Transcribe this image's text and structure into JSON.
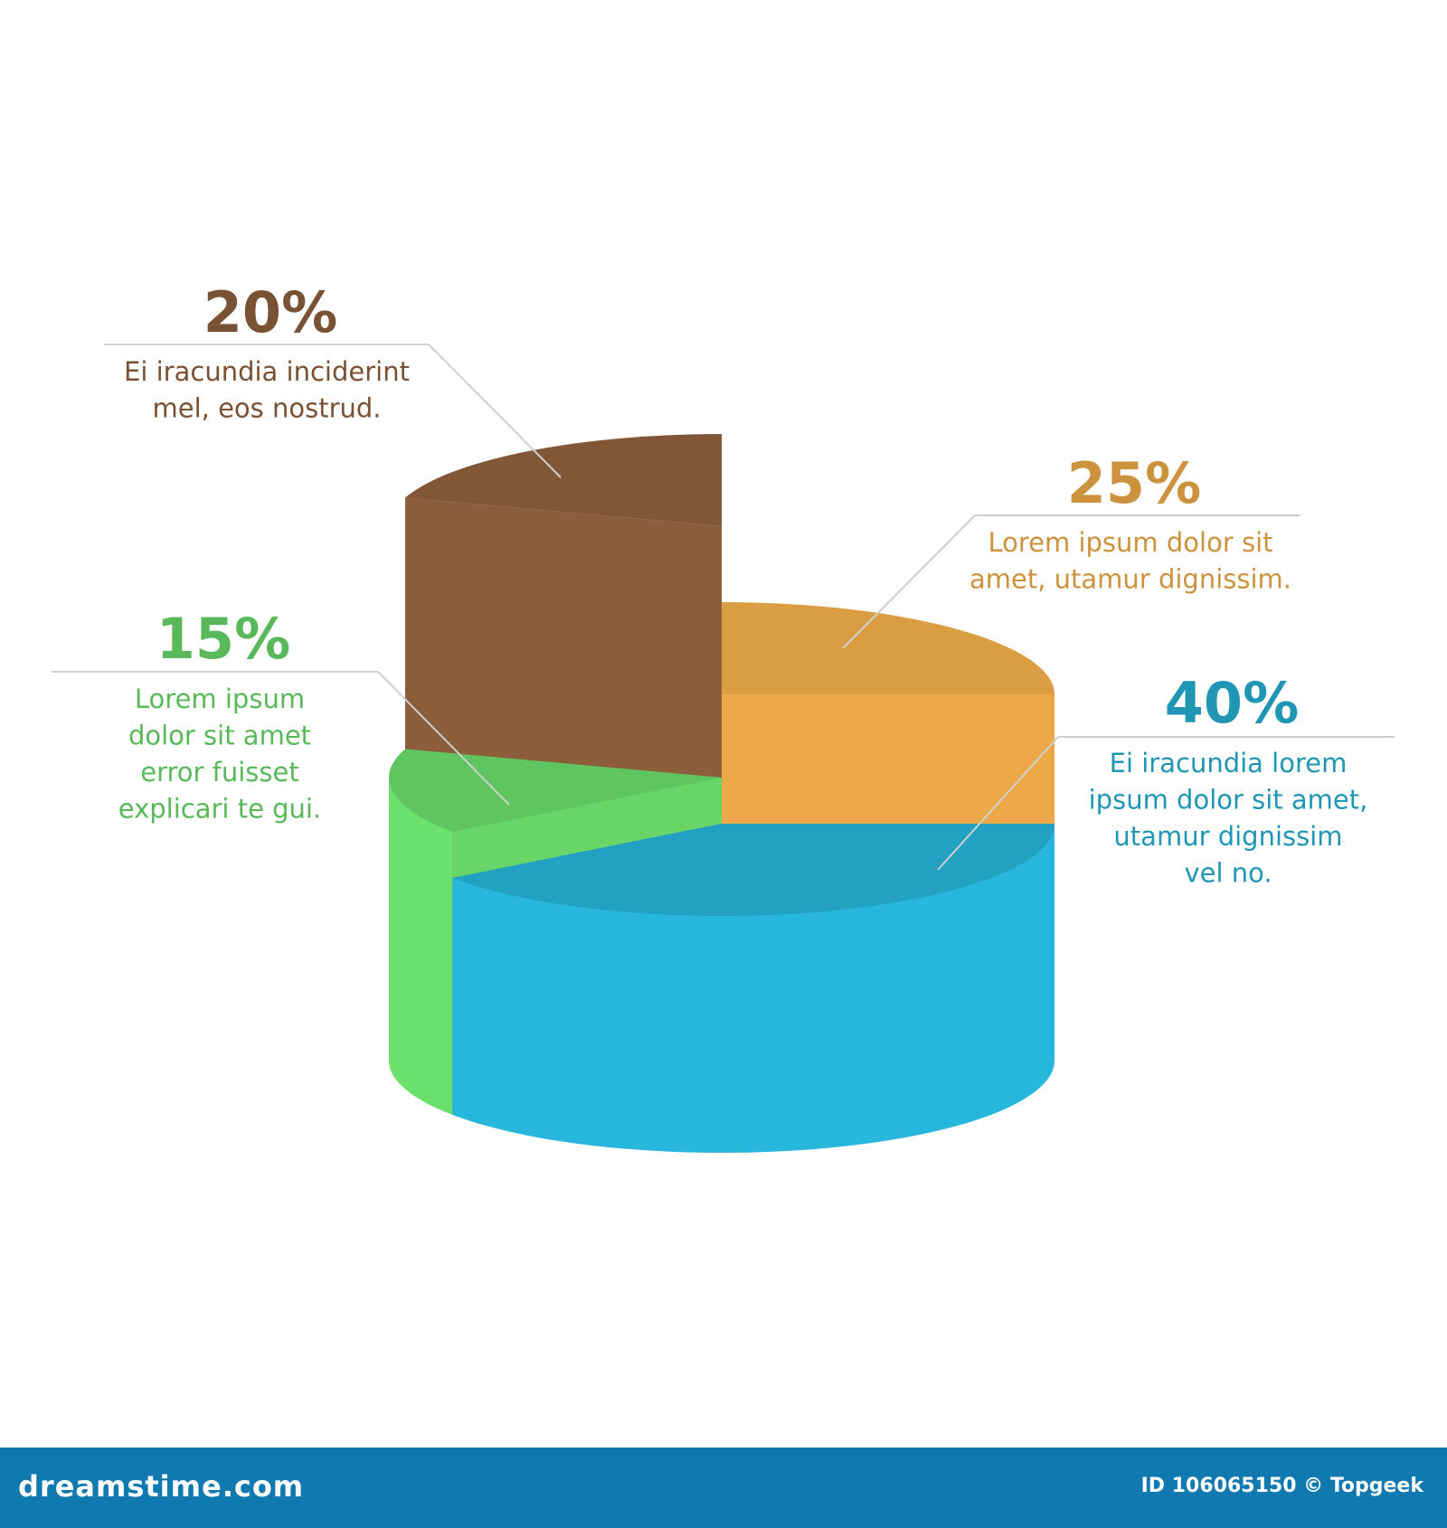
{
  "chart_data": {
    "type": "pie",
    "values": [
      20,
      25,
      40,
      15
    ],
    "value_labels": [
      "20%",
      "25%",
      "40%",
      "15%"
    ],
    "colors": [
      "#93633f",
      "#f9b24b",
      "#28b7dc",
      "#6ce06c"
    ],
    "descriptions": [
      [
        "Ei iracundia inciderint",
        "mel, eos nostrud."
      ],
      [
        "Lorem ipsum dolor sit",
        "amet, utamur dignissim."
      ],
      [
        "Ei iracundia lorem",
        "ipsum dolor sit amet,",
        "utamur dignissim",
        "vel no."
      ],
      [
        "Lorem ipsum",
        "dolor sit amet",
        "error fuisset",
        "explicari te gui."
      ]
    ]
  },
  "footer": {
    "site": "dreamstime.com",
    "credit": "ID 106065150 © Topgeek"
  }
}
